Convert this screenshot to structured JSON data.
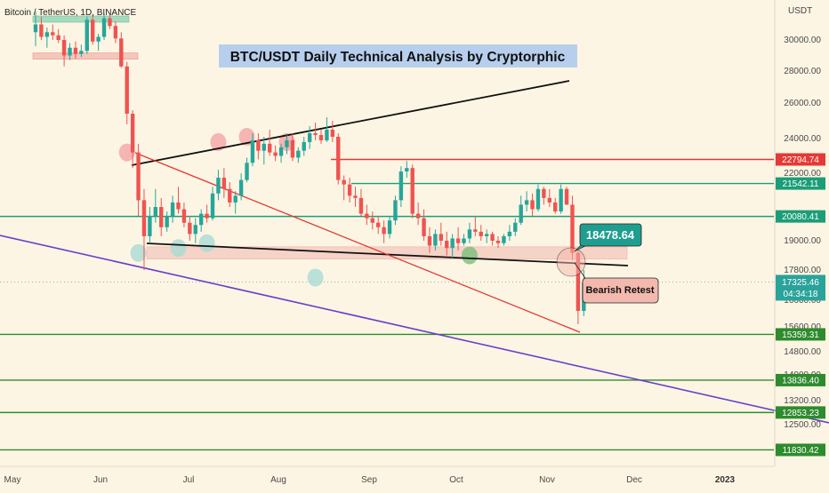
{
  "chart_data": {
    "type": "candlestick",
    "symbol_line": "Bitcoin / TetherUS, 1D, BINANCE",
    "title": "BTC/USDT Daily Technical Analysis by Cryptorphic",
    "axis_currency": "USDT",
    "price_ticks": [
      {
        "v": 30000,
        "label": "30000.00"
      },
      {
        "v": 28000,
        "label": "28000.00"
      },
      {
        "v": 26000,
        "label": "26000.00"
      },
      {
        "v": 24000,
        "label": "24000.00"
      },
      {
        "v": 22000,
        "label": "22000.00"
      },
      {
        "v": 19000,
        "label": "19000.00"
      },
      {
        "v": 17800,
        "label": "17800.00"
      },
      {
        "v": 16600,
        "label": "16600.00"
      },
      {
        "v": 15600,
        "label": "15600.00"
      },
      {
        "v": 14800,
        "label": "14800.00"
      },
      {
        "v": 14000,
        "label": "14000.00"
      },
      {
        "v": 13200,
        "label": "13200.00"
      },
      {
        "v": 12500,
        "label": "12500.00"
      }
    ],
    "time_ticks": [
      {
        "label": "May",
        "bold": false
      },
      {
        "label": "Jun",
        "bold": false
      },
      {
        "label": "Jul",
        "bold": false
      },
      {
        "label": "Aug",
        "bold": false
      },
      {
        "label": "Sep",
        "bold": false
      },
      {
        "label": "Oct",
        "bold": false
      },
      {
        "label": "Nov",
        "bold": false
      },
      {
        "label": "Dec",
        "bold": false
      },
      {
        "label": "2023",
        "bold": true
      }
    ],
    "levels": [
      {
        "price": 22794.74,
        "label": "22794.74",
        "color": "#e53935"
      },
      {
        "price": 21542.11,
        "label": "21542.11",
        "color": "#1b9e77"
      },
      {
        "price": 20080.41,
        "label": "20080.41",
        "color": "#1b9e77"
      },
      {
        "price": 15359.31,
        "label": "15359.31",
        "color": "#2e8b2e"
      },
      {
        "price": 13836.4,
        "label": "13836.40",
        "color": "#2e8b2e"
      },
      {
        "price": 12853.23,
        "label": "12853.23",
        "color": "#2e8b2e"
      },
      {
        "price": 11830.42,
        "label": "11830.42",
        "color": "#2e8b2e"
      }
    ],
    "current_price": {
      "price": 17325.46,
      "label": "17325.46",
      "countdown": "04:34:18",
      "color": "#2aa39a"
    },
    "callout_price": "18478.64",
    "annotation": "Bearish Retest",
    "candles": [
      [
        30500,
        31800,
        29600,
        31000
      ],
      [
        31000,
        31500,
        30000,
        30200
      ],
      [
        30200,
        30800,
        29500,
        30500
      ],
      [
        30500,
        31000,
        30000,
        30300
      ],
      [
        30300,
        30700,
        29800,
        30000
      ],
      [
        30000,
        30300,
        28300,
        29000
      ],
      [
        29000,
        29800,
        28700,
        29500
      ],
      [
        29500,
        29900,
        28800,
        29100
      ],
      [
        29100,
        29700,
        28900,
        29300
      ],
      [
        29300,
        31500,
        29100,
        31300
      ],
      [
        31300,
        31600,
        29700,
        29900
      ],
      [
        29900,
        30400,
        29300,
        30200
      ],
      [
        30200,
        31700,
        30000,
        31400
      ],
      [
        31400,
        31600,
        30700,
        30900
      ],
      [
        30900,
        31200,
        29800,
        30100
      ],
      [
        30100,
        30500,
        28200,
        28300
      ],
      [
        28300,
        28600,
        24800,
        25400
      ],
      [
        25400,
        25600,
        22300,
        23200
      ],
      [
        23200,
        23700,
        20100,
        20800
      ],
      [
        20800,
        21300,
        17800,
        19200
      ],
      [
        19200,
        20500,
        18900,
        20100
      ],
      [
        20100,
        21300,
        19800,
        20500
      ],
      [
        20500,
        20900,
        19200,
        19600
      ],
      [
        19600,
        20300,
        19400,
        20100
      ],
      [
        20100,
        21000,
        19800,
        20700
      ],
      [
        20700,
        21400,
        20200,
        20400
      ],
      [
        20400,
        20700,
        19600,
        19800
      ],
      [
        19800,
        20100,
        19000,
        19300
      ],
      [
        19300,
        20000,
        18900,
        19700
      ],
      [
        19700,
        20400,
        19400,
        20200
      ],
      [
        20200,
        20600,
        19800,
        20000
      ],
      [
        20000,
        21400,
        19900,
        21100
      ],
      [
        21100,
        22200,
        20800,
        21800
      ],
      [
        21800,
        22300,
        20900,
        21300
      ],
      [
        21300,
        21600,
        20500,
        20700
      ],
      [
        20700,
        21200,
        20200,
        21000
      ],
      [
        21000,
        22000,
        20800,
        21700
      ],
      [
        21700,
        22900,
        21600,
        22600
      ],
      [
        22600,
        24300,
        22400,
        23900
      ],
      [
        23900,
        24300,
        22800,
        23300
      ],
      [
        23300,
        24100,
        22500,
        23700
      ],
      [
        23700,
        24500,
        23000,
        23200
      ],
      [
        23200,
        23600,
        22700,
        23000
      ],
      [
        23000,
        23700,
        22600,
        23500
      ],
      [
        23500,
        24200,
        23100,
        23900
      ],
      [
        23900,
        24300,
        22700,
        22900
      ],
      [
        22900,
        23500,
        22600,
        23300
      ],
      [
        23300,
        24100,
        23000,
        23800
      ],
      [
        23800,
        24700,
        23400,
        24300
      ],
      [
        24300,
        24900,
        23900,
        24200
      ],
      [
        24200,
        24500,
        23700,
        23900
      ],
      [
        23900,
        25200,
        23800,
        24500
      ],
      [
        24500,
        25000,
        23800,
        24100
      ],
      [
        24100,
        24300,
        21500,
        21700
      ],
      [
        21700,
        21900,
        20800,
        21500
      ],
      [
        21500,
        21800,
        20700,
        21000
      ],
      [
        21000,
        21400,
        20500,
        20900
      ],
      [
        20900,
        21300,
        20100,
        20200
      ],
      [
        20200,
        20600,
        19700,
        20000
      ],
      [
        20000,
        20300,
        19500,
        19800
      ],
      [
        19800,
        20100,
        19300,
        19600
      ],
      [
        19600,
        19900,
        18900,
        19300
      ],
      [
        19300,
        20100,
        19100,
        19900
      ],
      [
        19900,
        21000,
        19700,
        20800
      ],
      [
        20800,
        22400,
        20500,
        22100
      ],
      [
        22100,
        22700,
        21800,
        22300
      ],
      [
        22300,
        22500,
        20000,
        20200
      ],
      [
        20200,
        20700,
        19700,
        20000
      ],
      [
        20000,
        20400,
        19000,
        19200
      ],
      [
        19200,
        19600,
        18500,
        18800
      ],
      [
        18800,
        19500,
        18600,
        19300
      ],
      [
        19300,
        19800,
        18800,
        19000
      ],
      [
        19000,
        19400,
        18400,
        18700
      ],
      [
        18700,
        19300,
        18300,
        19100
      ],
      [
        19100,
        19600,
        18600,
        18900
      ],
      [
        18900,
        19300,
        18800,
        19100
      ],
      [
        19100,
        19800,
        18900,
        19500
      ],
      [
        19500,
        20100,
        19200,
        19400
      ],
      [
        19400,
        19700,
        19000,
        19200
      ],
      [
        19200,
        19500,
        18900,
        19300
      ],
      [
        19300,
        19400,
        18800,
        19000
      ],
      [
        19000,
        19200,
        18700,
        18900
      ],
      [
        18900,
        19300,
        18800,
        19200
      ],
      [
        19200,
        19700,
        19000,
        19400
      ],
      [
        19400,
        20000,
        19200,
        19800
      ],
      [
        19800,
        21000,
        19700,
        20600
      ],
      [
        20600,
        21200,
        20300,
        20800
      ],
      [
        20800,
        21100,
        20100,
        20400
      ],
      [
        20400,
        21500,
        20300,
        21300
      ],
      [
        21300,
        21400,
        20600,
        20900
      ],
      [
        20900,
        21300,
        20500,
        20700
      ],
      [
        20700,
        20900,
        20200,
        20300
      ],
      [
        20300,
        21500,
        20200,
        21300
      ],
      [
        21300,
        21400,
        20600,
        20600
      ],
      [
        20600,
        21000,
        18200,
        18500
      ],
      [
        18500,
        18700,
        15700,
        16200
      ],
      [
        16200,
        17800,
        16000,
        17300
      ]
    ],
    "markers": [
      {
        "d": 16,
        "p": 23200,
        "color": "#f2a5a5"
      },
      {
        "d": 32,
        "p": 23800,
        "color": "#f2a5a5"
      },
      {
        "d": 37,
        "p": 24100,
        "color": "#f2a5a5"
      },
      {
        "d": 44,
        "p": 23800,
        "color": "#f2a5a5"
      },
      {
        "d": 18,
        "p": 18500,
        "color": "#a8dcd3"
      },
      {
        "d": 25,
        "p": 18700,
        "color": "#a8dcd3"
      },
      {
        "d": 30,
        "p": 18900,
        "color": "#a8dcd3"
      },
      {
        "d": 49,
        "p": 17500,
        "color": "#a8dcd3"
      },
      {
        "d": 76,
        "p": 18400,
        "color": "#7bbf7b"
      }
    ]
  }
}
